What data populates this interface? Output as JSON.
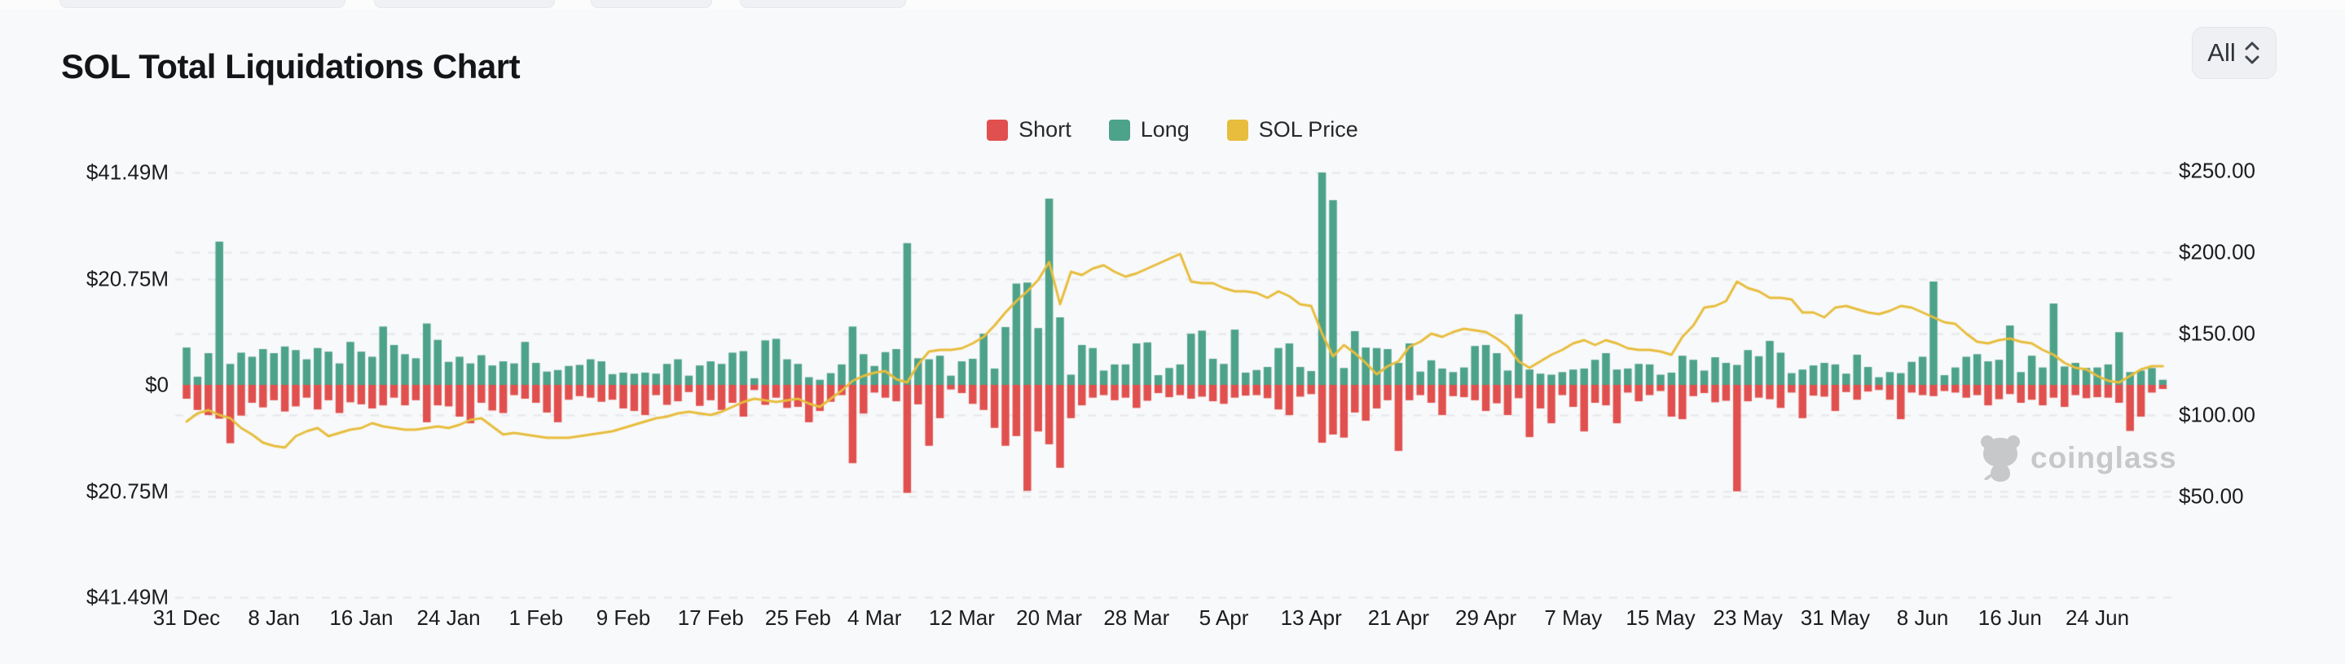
{
  "header": {
    "title": "SOL Total Liquidations Chart",
    "range_selector": {
      "value": "All"
    }
  },
  "legend": [
    {
      "label": "Short",
      "color": "#e0504e"
    },
    {
      "label": "Long",
      "color": "#4da28a"
    },
    {
      "label": "SOL Price",
      "color": "#e7bd3d"
    }
  ],
  "watermark": {
    "text": "coinglass"
  },
  "chart_data": {
    "type": "bar",
    "title": "SOL Total Liquidations Chart",
    "grid": true,
    "legend_position": "top",
    "left_axis": {
      "title": "Liquidations (USD)",
      "labels": [
        "$41.49M",
        "$20.75M",
        "$0",
        "$20.75M",
        "$41.49M"
      ],
      "values_m": [
        41.49,
        20.75,
        0,
        -20.75,
        -41.49
      ],
      "max_m": 41.49
    },
    "right_axis": {
      "title": "SOL Price (USD)",
      "labels": [
        "$250.00",
        "$200.00",
        "$150.00",
        "$100.00",
        "$50.00"
      ],
      "values": [
        250,
        200,
        150,
        100,
        50
      ],
      "min": 50,
      "max": 250
    },
    "x_ticks": [
      {
        "label": "31 Dec",
        "day": 0
      },
      {
        "label": "8 Jan",
        "day": 8
      },
      {
        "label": "16 Jan",
        "day": 16
      },
      {
        "label": "24 Jan",
        "day": 24
      },
      {
        "label": "1 Feb",
        "day": 32
      },
      {
        "label": "9 Feb",
        "day": 40
      },
      {
        "label": "17 Feb",
        "day": 48
      },
      {
        "label": "25 Feb",
        "day": 56
      },
      {
        "label": "4 Mar",
        "day": 63
      },
      {
        "label": "12 Mar",
        "day": 71
      },
      {
        "label": "20 Mar",
        "day": 79
      },
      {
        "label": "28 Mar",
        "day": 87
      },
      {
        "label": "5 Apr",
        "day": 95
      },
      {
        "label": "13 Apr",
        "day": 103
      },
      {
        "label": "21 Apr",
        "day": 111
      },
      {
        "label": "29 Apr",
        "day": 119
      },
      {
        "label": "7 May",
        "day": 127
      },
      {
        "label": "15 May",
        "day": 135
      },
      {
        "label": "23 May",
        "day": 143
      },
      {
        "label": "31 May",
        "day": 151
      },
      {
        "label": "8 Jun",
        "day": 159
      },
      {
        "label": "16 Jun",
        "day": 167
      },
      {
        "label": "24 Jun",
        "day": 175
      }
    ],
    "categories": [
      "31 Dec",
      "1 Jan",
      "2 Jan",
      "3 Jan",
      "4 Jan",
      "5 Jan",
      "6 Jan",
      "7 Jan",
      "8 Jan",
      "9 Jan",
      "10 Jan",
      "11 Jan",
      "12 Jan",
      "13 Jan",
      "14 Jan",
      "15 Jan",
      "16 Jan",
      "17 Jan",
      "18 Jan",
      "19 Jan",
      "20 Jan",
      "21 Jan",
      "22 Jan",
      "23 Jan",
      "24 Jan",
      "25 Jan",
      "26 Jan",
      "27 Jan",
      "28 Jan",
      "29 Jan",
      "30 Jan",
      "31 Jan",
      "1 Feb",
      "2 Feb",
      "3 Feb",
      "4 Feb",
      "5 Feb",
      "6 Feb",
      "7 Feb",
      "8 Feb",
      "9 Feb",
      "10 Feb",
      "11 Feb",
      "12 Feb",
      "13 Feb",
      "14 Feb",
      "15 Feb",
      "16 Feb",
      "17 Feb",
      "18 Feb",
      "19 Feb",
      "20 Feb",
      "21 Feb",
      "22 Feb",
      "23 Feb",
      "24 Feb",
      "25 Feb",
      "26 Feb",
      "27 Feb",
      "28 Feb",
      "1 Mar",
      "2 Mar",
      "3 Mar",
      "4 Mar",
      "5 Mar",
      "6 Mar",
      "7 Mar",
      "8 Mar",
      "9 Mar",
      "10 Mar",
      "11 Mar",
      "12 Mar",
      "13 Mar",
      "14 Mar",
      "15 Mar",
      "16 Mar",
      "17 Mar",
      "18 Mar",
      "19 Mar",
      "20 Mar",
      "21 Mar",
      "22 Mar",
      "23 Mar",
      "24 Mar",
      "25 Mar",
      "26 Mar",
      "27 Mar",
      "28 Mar",
      "29 Mar",
      "30 Mar",
      "31 Mar",
      "1 Apr",
      "2 Apr",
      "3 Apr",
      "4 Apr",
      "5 Apr",
      "6 Apr",
      "7 Apr",
      "8 Apr",
      "9 Apr",
      "10 Apr",
      "11 Apr",
      "12 Apr",
      "13 Apr",
      "14 Apr",
      "15 Apr",
      "16 Apr",
      "17 Apr",
      "18 Apr",
      "19 Apr",
      "20 Apr",
      "21 Apr",
      "22 Apr",
      "23 Apr",
      "24 Apr",
      "25 Apr",
      "26 Apr",
      "27 Apr",
      "28 Apr",
      "29 Apr",
      "30 Apr",
      "1 May",
      "2 May",
      "3 May",
      "4 May",
      "5 May",
      "6 May",
      "7 May",
      "8 May",
      "9 May",
      "10 May",
      "11 May",
      "12 May",
      "13 May",
      "14 May",
      "15 May",
      "16 May",
      "17 May",
      "18 May",
      "19 May",
      "20 May",
      "21 May",
      "22 May",
      "23 May",
      "24 May",
      "25 May",
      "26 May",
      "27 May",
      "28 May",
      "29 May",
      "30 May",
      "31 May",
      "1 Jun",
      "2 Jun",
      "3 Jun",
      "4 Jun",
      "5 Jun",
      "6 Jun",
      "7 Jun",
      "8 Jun",
      "9 Jun",
      "10 Jun",
      "11 Jun",
      "12 Jun",
      "13 Jun",
      "14 Jun",
      "15 Jun",
      "16 Jun",
      "17 Jun",
      "18 Jun",
      "19 Jun",
      "20 Jun",
      "21 Jun",
      "22 Jun",
      "23 Jun",
      "24 Jun",
      "25 Jun",
      "26 Jun",
      "27 Jun",
      "28 Jun",
      "29 Jun",
      "30 Jun"
    ],
    "series": [
      {
        "name": "Long",
        "type": "bar",
        "unit": "$M",
        "color": "#4da28a",
        "direction": "up",
        "values": [
          7.3,
          1.6,
          6.2,
          28.0,
          4.1,
          6.3,
          5.5,
          7.0,
          6.2,
          7.5,
          6.8,
          5.0,
          7.2,
          6.5,
          4.2,
          8.4,
          6.5,
          5.5,
          11.4,
          7.8,
          6.0,
          5.2,
          12.0,
          8.8,
          4.5,
          5.5,
          4.2,
          5.8,
          3.8,
          4.6,
          4.2,
          8.4,
          4.3,
          2.6,
          2.9,
          3.7,
          3.9,
          5.0,
          4.6,
          2.1,
          2.4,
          2.2,
          2.4,
          2.2,
          4.1,
          5.0,
          1.8,
          3.8,
          4.6,
          4.1,
          6.3,
          6.6,
          1.3,
          8.7,
          9.0,
          5.0,
          4.1,
          1.5,
          1.0,
          2.3,
          4.0,
          11.4,
          6.0,
          3.7,
          6.4,
          7.0,
          27.7,
          5.2,
          5.0,
          5.7,
          1.8,
          4.6,
          5.1,
          10.0,
          3.2,
          11.3,
          19.8,
          20.0,
          11.1,
          36.4,
          13.2,
          2.0,
          7.8,
          7.2,
          2.8,
          4.0,
          4.0,
          8.1,
          8.3,
          1.9,
          3.3,
          4.0,
          10.0,
          10.6,
          5.1,
          4.1,
          10.8,
          2.4,
          2.9,
          3.5,
          7.2,
          8.1,
          3.5,
          2.7,
          41.5,
          36.1,
          3.3,
          10.5,
          7.3,
          7.2,
          7.0,
          4.3,
          8.1,
          2.6,
          4.8,
          3.2,
          2.5,
          3.4,
          7.6,
          7.8,
          6.2,
          2.8,
          13.8,
          3.0,
          2.2,
          2.0,
          2.5,
          3.0,
          3.2,
          4.9,
          6.2,
          3.0,
          3.2,
          4.1,
          4.0,
          2.0,
          2.4,
          5.7,
          4.9,
          2.8,
          5.4,
          4.3,
          3.9,
          6.8,
          5.6,
          8.6,
          6.3,
          2.3,
          3.0,
          3.8,
          4.3,
          4.0,
          2.2,
          5.9,
          3.5,
          1.5,
          2.5,
          2.3,
          4.5,
          5.5,
          20.2,
          1.9,
          3.4,
          5.5,
          6.0,
          4.6,
          4.9,
          11.6,
          2.5,
          5.7,
          3.4,
          15.9,
          3.6,
          4.3,
          3.3,
          3.4,
          4.0,
          10.3,
          2.5,
          2.8,
          3.3,
          1.0
        ]
      },
      {
        "name": "Short",
        "type": "bar",
        "unit": "$M",
        "color": "#e0504e",
        "direction": "down",
        "values": [
          2.7,
          4.9,
          5.9,
          6.6,
          11.4,
          6.0,
          3.5,
          4.4,
          3.0,
          5.2,
          4.2,
          2.5,
          4.8,
          3.0,
          5.5,
          3.4,
          3.8,
          4.6,
          4.0,
          2.5,
          4.0,
          3.0,
          7.3,
          4.0,
          4.2,
          6.2,
          7.5,
          3.5,
          5.0,
          5.5,
          2.0,
          2.7,
          3.5,
          5.4,
          7.3,
          2.9,
          2.2,
          2.5,
          3.3,
          2.9,
          4.6,
          5.1,
          5.9,
          2.0,
          3.9,
          3.2,
          1.4,
          4.1,
          3.0,
          4.9,
          3.5,
          6.2,
          1.0,
          3.9,
          2.5,
          4.5,
          4.3,
          7.3,
          5.1,
          3.3,
          2.0,
          15.3,
          5.6,
          1.5,
          2.5,
          3.2,
          21.1,
          3.8,
          11.9,
          6.5,
          0.9,
          1.6,
          3.7,
          4.9,
          8.4,
          11.9,
          10.0,
          20.7,
          9.1,
          11.6,
          16.2,
          6.5,
          4.0,
          2.5,
          2.0,
          3.0,
          2.5,
          4.5,
          3.1,
          1.6,
          2.4,
          2.0,
          2.7,
          2.3,
          3.2,
          3.7,
          2.5,
          2.1,
          2.0,
          2.6,
          4.8,
          5.9,
          2.3,
          1.8,
          11.3,
          9.7,
          10.3,
          5.4,
          7.0,
          4.6,
          3.0,
          12.9,
          3.0,
          2.0,
          3.5,
          5.9,
          2.2,
          2.4,
          3.0,
          5.1,
          3.6,
          5.9,
          2.6,
          10.2,
          4.6,
          7.5,
          2.0,
          4.3,
          9.1,
          3.5,
          4.0,
          7.5,
          1.5,
          3.2,
          2.0,
          1.2,
          6.2,
          6.7,
          2.2,
          1.6,
          3.4,
          3.1,
          20.8,
          3.2,
          2.5,
          2.8,
          4.5,
          1.5,
          6.5,
          2.1,
          2.3,
          5.1,
          1.4,
          2.9,
          1.3,
          1.0,
          2.9,
          6.7,
          1.5,
          2.0,
          2.2,
          1.2,
          1.5,
          2.5,
          2.0,
          4.0,
          2.8,
          1.8,
          3.5,
          2.9,
          4.0,
          2.5,
          4.3,
          2.0,
          2.6,
          2.4,
          2.5,
          3.5,
          9.0,
          6.2,
          1.5,
          0.8
        ]
      },
      {
        "name": "SOL Price",
        "type": "line",
        "unit": "$",
        "color": "#e7bd3d",
        "values": [
          96,
          101,
          103,
          100,
          98,
          92,
          88,
          83,
          81,
          80,
          87,
          90,
          92,
          87,
          89,
          91,
          92,
          95,
          93,
          92,
          91,
          91,
          92,
          93,
          92,
          94,
          97,
          98,
          93,
          88,
          89,
          88,
          87,
          86,
          86,
          86,
          87,
          88,
          89,
          90,
          92,
          94,
          96,
          98,
          99,
          101,
          102,
          101,
          100,
          102,
          105,
          108,
          110,
          109,
          108,
          109,
          110,
          107,
          105,
          110,
          115,
          121,
          124,
          126,
          127,
          122,
          120,
          131,
          139,
          140,
          140,
          141,
          144,
          148,
          155,
          163,
          170,
          176,
          183,
          194,
          168,
          188,
          186,
          190,
          192,
          188,
          185,
          187,
          190,
          193,
          196,
          199,
          182,
          181,
          181,
          178,
          176,
          176,
          175,
          172,
          176,
          173,
          168,
          167,
          150,
          136,
          143,
          138,
          132,
          125,
          130,
          133,
          142,
          145,
          150,
          148,
          151,
          153,
          152,
          151,
          147,
          142,
          133,
          129,
          133,
          137,
          140,
          144,
          146,
          143,
          146,
          144,
          141,
          140,
          140,
          139,
          137,
          148,
          155,
          166,
          167,
          170,
          182,
          178,
          176,
          172,
          172,
          171,
          163,
          163,
          160,
          166,
          167,
          165,
          163,
          162,
          164,
          167,
          166,
          163,
          160,
          157,
          156,
          150,
          145,
          144,
          146,
          147,
          145,
          144,
          140,
          137,
          132,
          129,
          128,
          124,
          121,
          120,
          124,
          128,
          130,
          130
        ]
      }
    ]
  }
}
